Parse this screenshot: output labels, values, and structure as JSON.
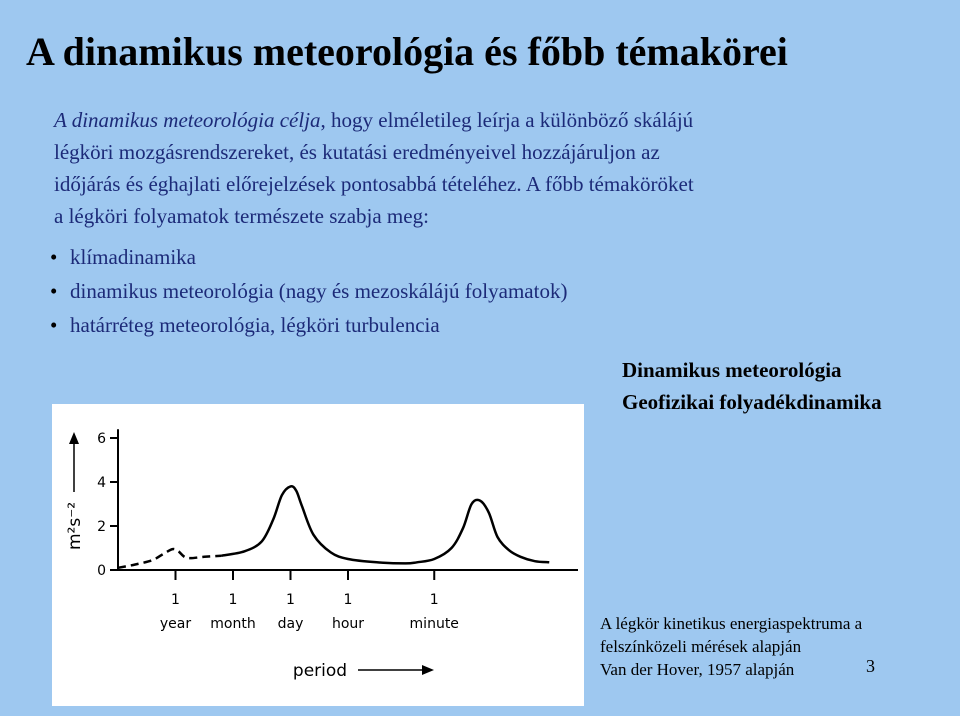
{
  "title": "A dinamikus meteorológia és főbb témakörei",
  "intro": {
    "italic_lead": "A dinamikus meteorológia célja",
    "line1_rest": ", hogy elméletileg leírja a különböző skálájú",
    "line2": "légköri mozgásrendszereket, és kutatási eredményeivel hozzájáruljon az",
    "line3": "időjárás és éghajlati előrejelzések pontosabbá tételéhez. A főbb témaköröket",
    "line4": "a légköri folyamatok természete szabja meg:"
  },
  "bullets": [
    "klímadinamika",
    "dinamikus meteorológia (nagy és mezoskálájú folyamatok)",
    "határréteg meteorológia, légköri turbulencia"
  ],
  "right_heading": {
    "line1": "Dinamikus meteorológia",
    "line2": "Geofizikai folyadékdinamika"
  },
  "caption": {
    "line1": "A légkör kinetikus energiaspektruma a",
    "line2": "felszínközeli mérések alapján",
    "line3": "Van der Hover, 1957 alapján"
  },
  "page_number": "3",
  "chart_data": {
    "type": "line",
    "ylabel": "m²s⁻²",
    "xlabel": "period",
    "y_ticks": [
      "0",
      "2",
      "4",
      "6"
    ],
    "ylim": [
      0,
      6.5
    ],
    "x_ticks": [
      {
        "top": "1",
        "bottom": "year"
      },
      {
        "top": "1",
        "bottom": "month"
      },
      {
        "top": "1",
        "bottom": "day"
      },
      {
        "top": "1",
        "bottom": "hour"
      },
      {
        "top": "1",
        "bottom": "minute"
      }
    ],
    "series": [
      {
        "style": "dashed",
        "x": [
          0.0,
          0.3,
          0.6,
          0.8,
          0.95,
          1.05,
          1.2,
          1.5,
          1.8
        ],
        "y": [
          0.1,
          0.25,
          0.45,
          0.75,
          0.95,
          0.85,
          0.55,
          0.6,
          0.65
        ]
      },
      {
        "style": "solid",
        "x": [
          1.8,
          2.2,
          2.5,
          2.7,
          2.85,
          3.0,
          3.1,
          3.2,
          3.4,
          3.7,
          4.0,
          4.5,
          5.0,
          5.2,
          5.5,
          5.8,
          6.0,
          6.15,
          6.3,
          6.45,
          6.6,
          6.8,
          7.0,
          7.25,
          7.5
        ],
        "y": [
          0.65,
          0.85,
          1.3,
          2.3,
          3.4,
          3.8,
          3.6,
          2.9,
          1.6,
          0.8,
          0.5,
          0.35,
          0.3,
          0.35,
          0.5,
          1.0,
          1.9,
          3.0,
          3.15,
          2.6,
          1.5,
          0.9,
          0.6,
          0.4,
          0.35
        ]
      }
    ],
    "x_positions_of_ticks": [
      1.0,
      2.0,
      3.0,
      4.0,
      5.5
    ]
  }
}
